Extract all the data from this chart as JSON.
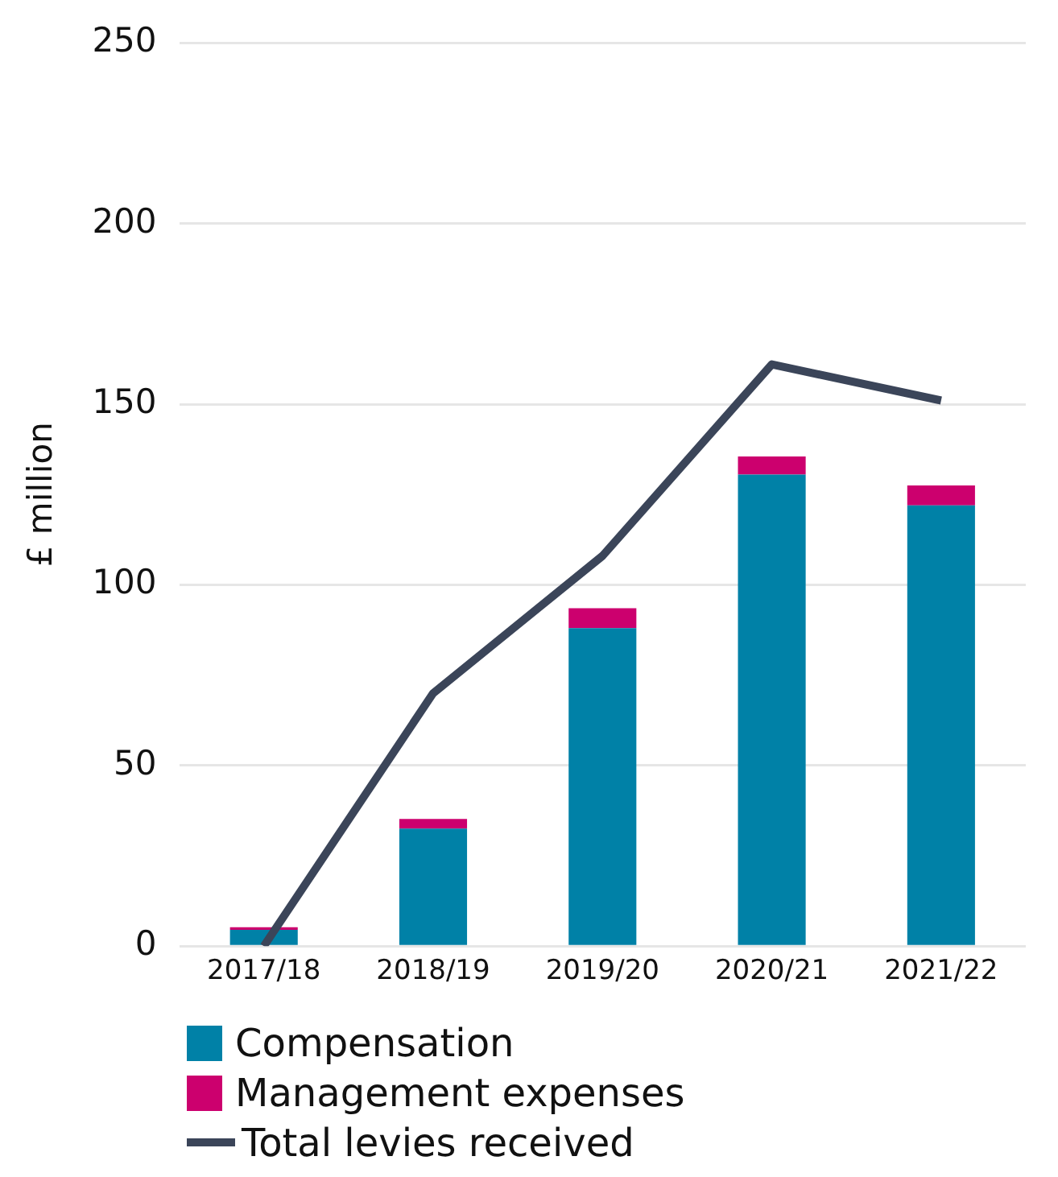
{
  "chart_data": {
    "type": "bar",
    "stacked": true,
    "ylabel": "£ million",
    "categories": [
      "2017/18",
      "2018/19",
      "2019/20",
      "2020/21",
      "2021/22"
    ],
    "series": [
      {
        "name": "Compensation",
        "color": "#0081a7",
        "values": [
          4.5,
          32.5,
          88,
          130.5,
          122
        ]
      },
      {
        "name": "Management expenses",
        "color": "#cc006e",
        "values": [
          0.7,
          2.7,
          5.5,
          5,
          5.5
        ]
      },
      {
        "name": "Total levies received",
        "type": "line",
        "color": "#3b4559",
        "values": [
          0,
          70,
          108,
          161,
          151
        ]
      }
    ],
    "ylim": [
      0,
      250
    ],
    "yticks": [
      0,
      50,
      100,
      150,
      200,
      250
    ],
    "grid": "y",
    "legend": "bottom",
    "marker": "none"
  }
}
